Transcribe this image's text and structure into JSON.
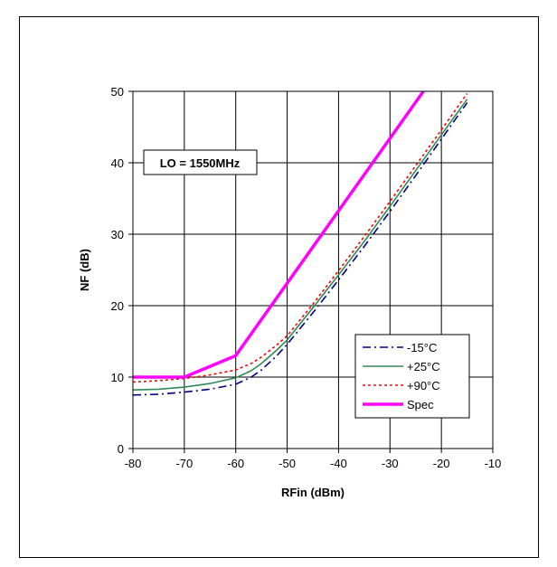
{
  "chart_data": {
    "type": "line",
    "title": "",
    "xlabel": "RFin (dBm)",
    "ylabel": "NF (dB)",
    "xlim": [
      -80,
      -10
    ],
    "ylim": [
      0,
      50
    ],
    "x_ticks": [
      -80,
      -70,
      -60,
      -50,
      -40,
      -30,
      -20,
      -10
    ],
    "y_ticks": [
      0,
      10,
      20,
      30,
      40,
      50
    ],
    "grid": true,
    "legend_position": "bottom-right",
    "annotation": "LO = 1550MHz",
    "series": [
      {
        "name": "-15°C",
        "color": "#000080",
        "dash": "dash-dot",
        "x": [
          -80,
          -75,
          -70,
          -65,
          -60,
          -57,
          -55,
          -52,
          -50,
          -45,
          -40,
          -35,
          -30,
          -25,
          -20,
          -15
        ],
        "y": [
          7.5,
          7.6,
          7.9,
          8.3,
          9.0,
          10.0,
          11.0,
          13.0,
          14.6,
          19.0,
          23.6,
          28.3,
          33.2,
          38.2,
          43.3,
          48.4
        ]
      },
      {
        "name": "+25°C",
        "color": "#2e8b57",
        "dash": "solid",
        "x": [
          -80,
          -75,
          -70,
          -65,
          -60,
          -57,
          -55,
          -52,
          -50,
          -45,
          -40,
          -35,
          -30,
          -25,
          -20,
          -15
        ],
        "y": [
          8.2,
          8.3,
          8.6,
          9.1,
          9.9,
          10.9,
          11.9,
          13.8,
          15.2,
          19.7,
          24.3,
          29.0,
          33.9,
          38.9,
          43.9,
          48.9
        ]
      },
      {
        "name": "+90°C",
        "color": "#ff0000",
        "dash": "dotted",
        "x": [
          -80,
          -75,
          -70,
          -65,
          -60,
          -57,
          -55,
          -52,
          -50,
          -45,
          -40,
          -35,
          -30,
          -25,
          -20,
          -15
        ],
        "y": [
          9.3,
          9.5,
          9.8,
          10.3,
          11.0,
          11.9,
          12.8,
          14.5,
          15.8,
          20.2,
          24.9,
          29.7,
          34.6,
          39.6,
          44.6,
          49.7
        ]
      },
      {
        "name": "Spec",
        "color": "#ff00ff",
        "dash": "solid",
        "x": [
          -80,
          -70,
          -60,
          -23.5
        ],
        "y": [
          10,
          10,
          13,
          50
        ]
      }
    ]
  }
}
